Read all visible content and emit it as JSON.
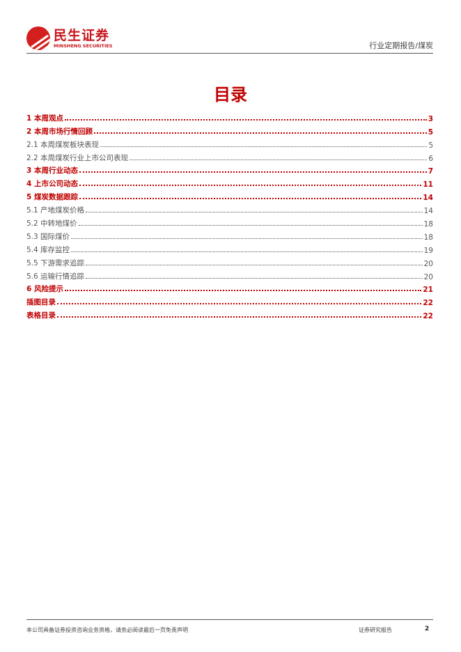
{
  "header": {
    "logo_cn": "民生证券",
    "logo_en": "MINSHENG SECURITIES",
    "category": "行业定期报告/煤炭"
  },
  "title": "目录",
  "toc": [
    {
      "label": "1  本周观点",
      "page": "3",
      "level": 1
    },
    {
      "label": "2  本周市场行情回顾",
      "page": "5",
      "level": 1
    },
    {
      "label": "2.1  本周煤炭板块表现",
      "page": "5",
      "level": 2
    },
    {
      "label": "2.2  本周煤炭行业上市公司表现",
      "page": "6",
      "level": 2
    },
    {
      "label": "3  本周行业动态",
      "page": "7",
      "level": 1
    },
    {
      "label": "4  上市公司动态",
      "page": "11",
      "level": 1
    },
    {
      "label": "5  煤炭数据跟踪",
      "page": "14",
      "level": 1
    },
    {
      "label": "5.1  产地煤炭价格",
      "page": "14",
      "level": 2
    },
    {
      "label": "5.2  中转地煤价",
      "page": "18",
      "level": 2
    },
    {
      "label": "5.3  国际煤价",
      "page": "18",
      "level": 2
    },
    {
      "label": "5.4  库存监控",
      "page": "19",
      "level": 2
    },
    {
      "label": "5.5  下游需求追踪",
      "page": "20",
      "level": 2
    },
    {
      "label": "5.6  运输行情追踪",
      "page": "20",
      "level": 2
    },
    {
      "label": "6  风险提示",
      "page": "21",
      "level": 1
    },
    {
      "label": "插图目录",
      "page": "22",
      "level": 1
    },
    {
      "label": "表格目录",
      "page": "22",
      "level": 1
    }
  ],
  "footer": {
    "disclaimer": "本公司具备证券投资咨询业务资格，请务必阅读最后一页免责声明",
    "report_type": "证券研究报告",
    "page_number": "2"
  },
  "colors": {
    "accent": "#c00000",
    "logo": "#d3201f"
  }
}
